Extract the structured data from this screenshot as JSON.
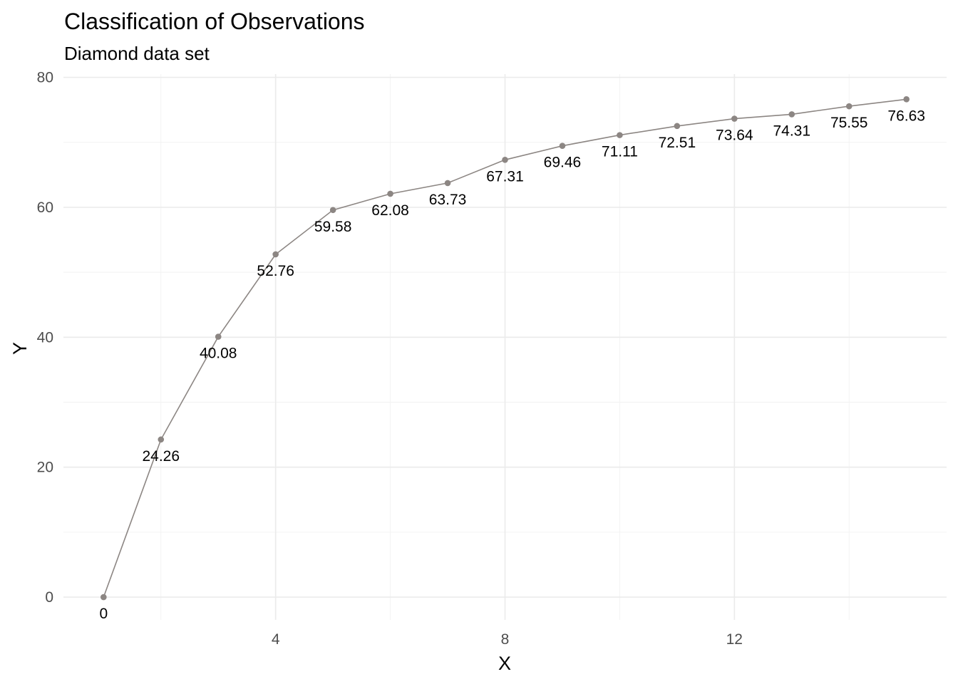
{
  "chart_data": {
    "type": "line",
    "title": "Classification of Observations",
    "subtitle": "Diamond data set",
    "xlabel": "X",
    "ylabel": "Y",
    "xlim": [
      0.3,
      15.7
    ],
    "ylim": [
      -3.5,
      80.5
    ],
    "x_ticks": [
      4,
      8,
      12
    ],
    "x_tick_labels": [
      "4",
      "8",
      "12"
    ],
    "x_minor_ticks": [
      2,
      6,
      10,
      14
    ],
    "y_ticks": [
      0,
      20,
      40,
      60,
      80
    ],
    "y_tick_labels": [
      "0",
      "20",
      "40",
      "60",
      "80"
    ],
    "y_minor_ticks": [
      10,
      30,
      50,
      70
    ],
    "grid": true,
    "legend": "none",
    "colors": {
      "series": "#8c8683",
      "grid_major": "#ebebeb",
      "grid_minor": "#f2f2f2"
    },
    "series": [
      {
        "x": [
          1,
          2,
          3,
          4,
          5,
          6,
          7,
          8,
          9,
          10,
          11,
          12,
          13,
          14,
          15
        ],
        "values": [
          0,
          24.26,
          40.08,
          52.76,
          59.58,
          62.08,
          63.73,
          67.31,
          69.46,
          71.11,
          72.51,
          73.64,
          74.31,
          75.55,
          76.63
        ],
        "labels": [
          "0",
          "24.26",
          "40.08",
          "52.76",
          "59.58",
          "62.08",
          "63.73",
          "67.31",
          "69.46",
          "71.11",
          "72.51",
          "73.64",
          "74.31",
          "75.55",
          "76.63"
        ]
      }
    ]
  }
}
